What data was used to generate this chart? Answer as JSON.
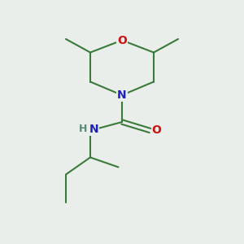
{
  "background_color": "#eaeeea",
  "bond_color": "#3a7a3a",
  "N_color": "#2020bb",
  "O_color": "#cc1111",
  "H_color": "#5a8a7a",
  "line_width": 1.5,
  "figsize": [
    3.0,
    3.0
  ],
  "dpi": 100,
  "xlim": [
    0,
    10
  ],
  "ylim": [
    0,
    10
  ]
}
